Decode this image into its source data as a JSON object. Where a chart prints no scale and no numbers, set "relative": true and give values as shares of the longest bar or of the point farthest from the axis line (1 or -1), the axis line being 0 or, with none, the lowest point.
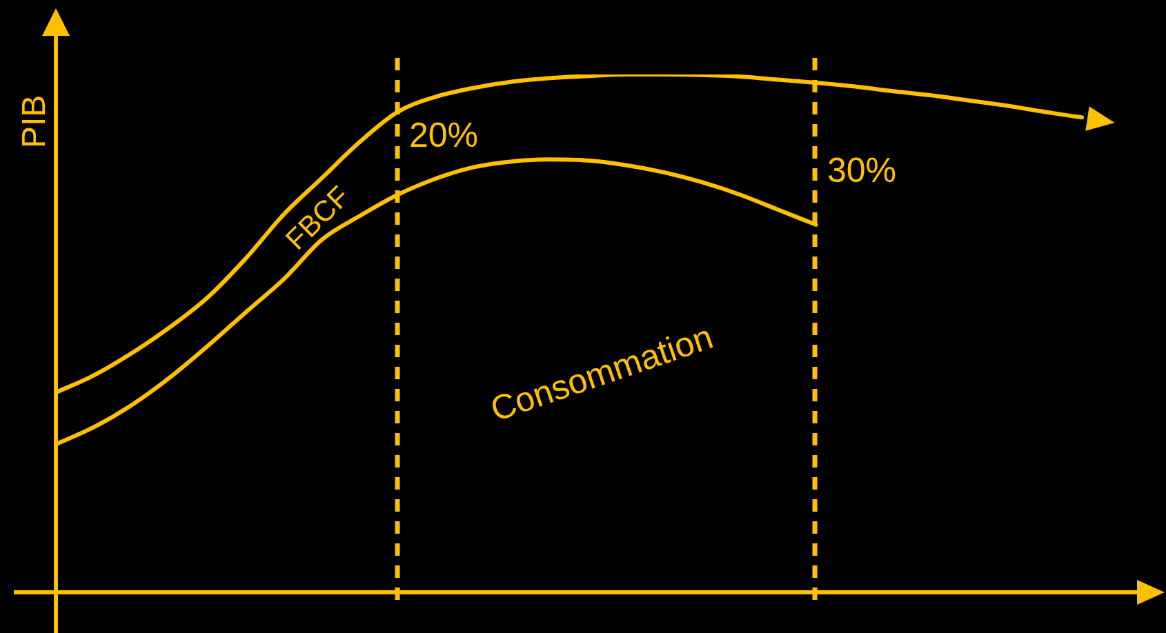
{
  "chart_data": {
    "type": "line",
    "relative": true,
    "ylabel": "PIB",
    "categories": [
      null,
      null,
      null,
      null,
      null,
      null,
      null,
      null,
      null,
      null,
      null,
      null,
      null,
      null,
      null,
      null,
      null,
      null,
      null,
      null,
      null,
      null,
      null,
      null,
      null,
      null,
      null,
      null
    ],
    "series": [
      {
        "color": "#ffc000",
        "values": [
          0.386,
          0.419,
          0.462,
          0.512,
          0.57,
          0.645,
          0.73,
          0.8,
          0.87,
          0.928,
          0.957,
          0.974,
          0.986,
          0.993,
          0.997,
          1,
          1,
          0.999,
          0.996,
          0.99,
          0.984,
          0.977,
          0.968,
          0.96,
          0.95,
          0.94,
          0.928,
          0.917
        ]
      },
      {
        "color": "#ffc000",
        "values": [
          0.286,
          0.319,
          0.362,
          0.415,
          0.476,
          0.541,
          0.605,
          0.681,
          0.727,
          0.768,
          0.799,
          0.821,
          0.832,
          0.836,
          0.834,
          0.825,
          0.811,
          0.792,
          0.768,
          0.739,
          0.71,
          null,
          null,
          null,
          null,
          null,
          null,
          null
        ]
      }
    ],
    "annotations": [
      "FBCF",
      "Consommation",
      "20%",
      "30%"
    ],
    "legend": false,
    "marker": "none",
    "line_style": "solid",
    "tick_labels": false
  }
}
